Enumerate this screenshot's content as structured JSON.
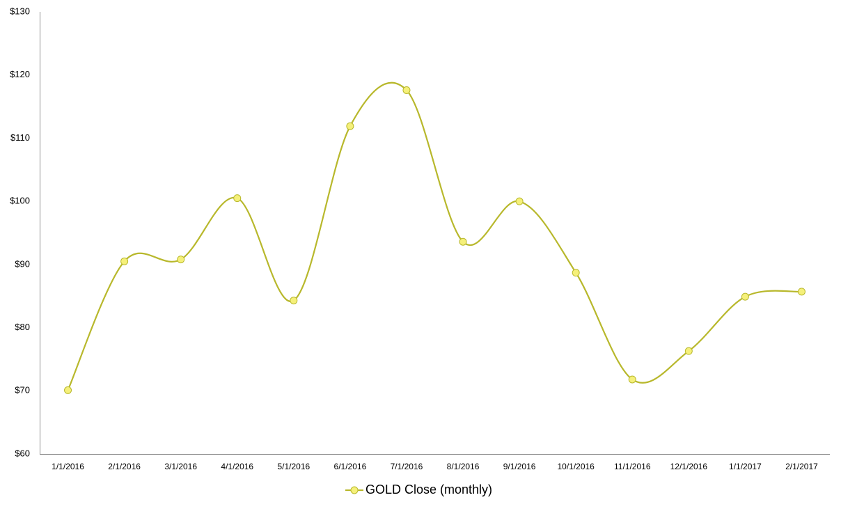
{
  "chart_data": {
    "type": "line",
    "categories": [
      "1/1/2016",
      "2/1/2016",
      "3/1/2016",
      "4/1/2016",
      "5/1/2016",
      "6/1/2016",
      "7/1/2016",
      "8/1/2016",
      "9/1/2016",
      "10/1/2016",
      "11/1/2016",
      "12/1/2016",
      "1/1/2017",
      "2/1/2017"
    ],
    "series": [
      {
        "name": "GOLD Close (monthly)",
        "color": "#b8b82c",
        "marker_color": "#f5f07a",
        "values": [
          70.1,
          90.5,
          90.8,
          100.5,
          84.3,
          111.9,
          117.6,
          93.6,
          100.0,
          88.7,
          71.8,
          76.3,
          84.9,
          85.7
        ]
      }
    ],
    "smooth": true,
    "ylim": [
      60,
      130
    ],
    "yticks": [
      {
        "value": 60,
        "label": "$60"
      },
      {
        "value": 70,
        "label": "$70"
      },
      {
        "value": 80,
        "label": "$80"
      },
      {
        "value": 90,
        "label": "$90"
      },
      {
        "value": 100,
        "label": "$100"
      },
      {
        "value": 110,
        "label": "$110"
      },
      {
        "value": 120,
        "label": "$120"
      },
      {
        "value": 130,
        "label": "$130"
      }
    ],
    "legend": "bottom"
  }
}
